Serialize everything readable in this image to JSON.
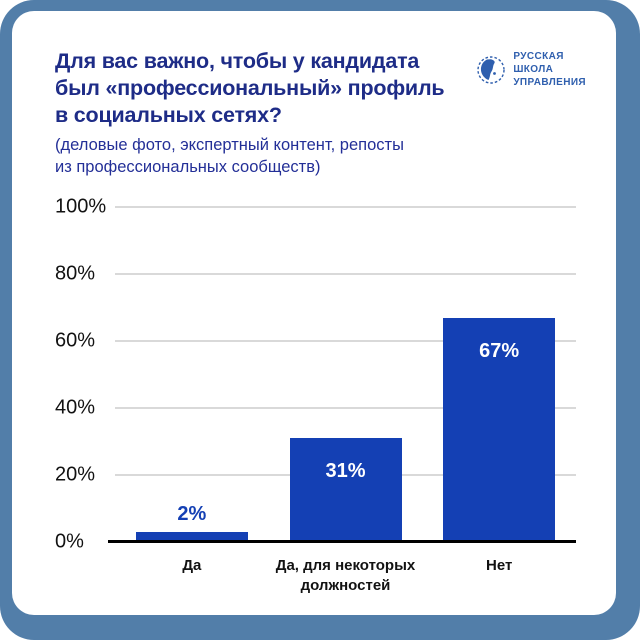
{
  "colors": {
    "frame": "#527ea9",
    "card_bg": "#ffffff",
    "title": "#1e2c87",
    "subtitle": "#232f97",
    "logo": "#2f5fae",
    "axis_text": "#121212",
    "gridline": "#d9d9d9",
    "baseline": "#000000",
    "bar": "#1440b4",
    "value_inside": "#ffffff"
  },
  "header": {
    "title_lines": [
      "Для вас важно, чтобы у кандидата",
      "был «профессиональный» профиль",
      "в социальных сетях?"
    ],
    "subtitle_lines": [
      "(деловые фото, экспертный контент, репосты",
      "из профессиональных сообществ)"
    ]
  },
  "logo": {
    "lines": [
      "РУССКАЯ",
      "ШКОЛА",
      "УПРАВЛЕНИЯ"
    ]
  },
  "chart_data": {
    "type": "bar",
    "categories": [
      "Да",
      "Да, для некоторых\nдолжностей",
      "Нет"
    ],
    "values": [
      2,
      31,
      67
    ],
    "value_labels": [
      "2%",
      "31%",
      "67%"
    ],
    "y_ticks": [
      {
        "label": "100%",
        "value": 100
      },
      {
        "label": "80%",
        "value": 80
      },
      {
        "label": "60%",
        "value": 60
      },
      {
        "label": "40%",
        "value": 40
      },
      {
        "label": "20%",
        "value": 20
      },
      {
        "label": "0%",
        "value": 0
      }
    ],
    "ylim": [
      0,
      100
    ],
    "grid": true,
    "legend": false,
    "bar_color": "#1440b4",
    "label_color_inside": "#ffffff",
    "label_color_outside": "#1440b4"
  }
}
